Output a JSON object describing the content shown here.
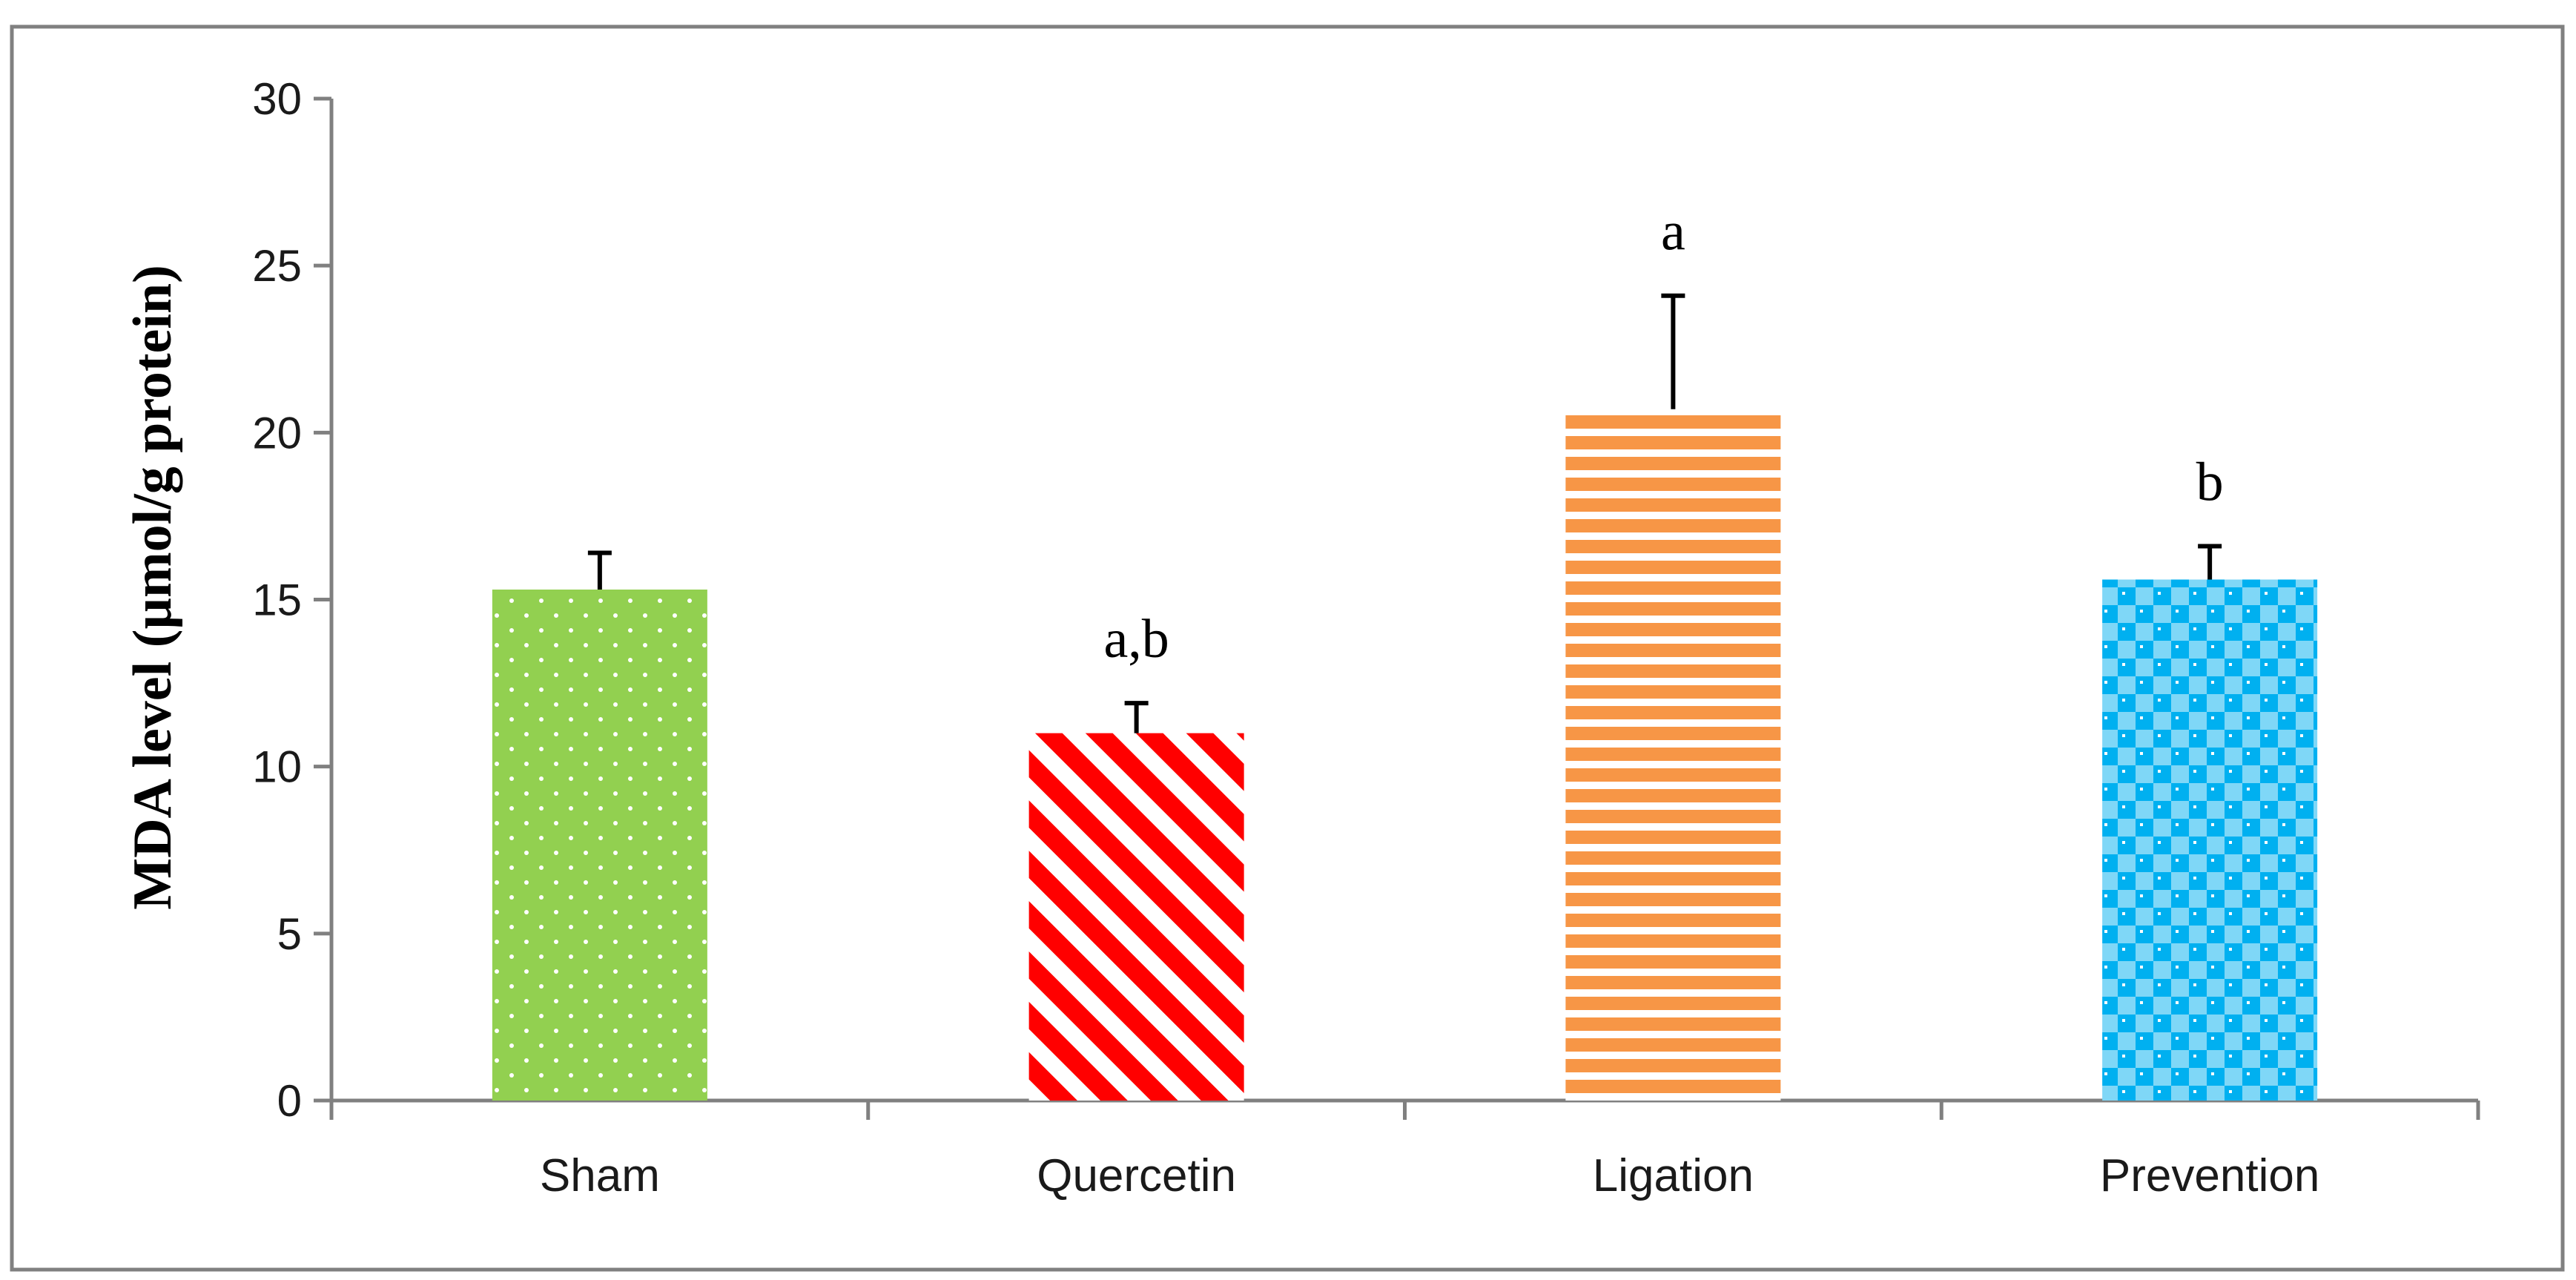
{
  "chart_data": {
    "type": "bar",
    "title": "",
    "xlabel": "",
    "ylabel": "MDA level (µmol/g protein)",
    "ylim": [
      0,
      30
    ],
    "yticks": [
      0,
      5,
      10,
      15,
      20,
      25,
      30
    ],
    "categories": [
      "Sham",
      "Quercetin",
      "Ligation",
      "Prevention"
    ],
    "values": [
      15.3,
      11.0,
      20.7,
      15.6
    ],
    "errors": [
      1.1,
      0.9,
      3.4,
      1.0
    ],
    "annotations": [
      "",
      "a,b",
      "a",
      "b"
    ],
    "colors": {
      "Sham": "#92d050",
      "Quercetin": "#ff0000",
      "Ligation": "#f79646",
      "Prevention": "#00b0f0",
      "axis": "#808080",
      "frame": "#808080"
    }
  }
}
